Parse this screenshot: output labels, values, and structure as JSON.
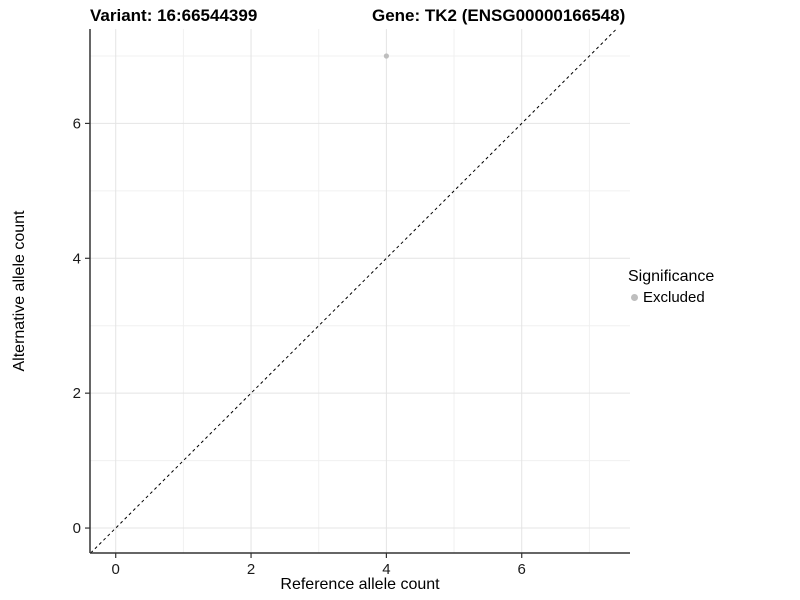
{
  "chart_data": {
    "type": "scatter",
    "title_left": "Variant: 16:66544399",
    "title_right": "Gene: TK2 (ENSG00000166548)",
    "xlabel": "Reference allele count",
    "ylabel": "Alternative allele count",
    "xlim": [
      -0.38,
      7.6
    ],
    "ylim": [
      -0.37,
      7.4
    ],
    "x_major_ticks": [
      0,
      2,
      4,
      6
    ],
    "x_minor_ticks": [
      1,
      3,
      5,
      7
    ],
    "y_major_ticks": [
      0,
      2,
      4,
      6
    ],
    "y_minor_ticks": [
      1,
      3,
      5,
      7
    ],
    "grid": true,
    "points": [
      {
        "x": 4,
        "y": 7,
        "significance": "Excluded"
      }
    ],
    "identity_line": {
      "equation": "y = x",
      "style": "dashed"
    },
    "legend": {
      "title": "Significance",
      "position": "right",
      "items": [
        {
          "label": "Excluded",
          "color": "#bebebe"
        }
      ]
    },
    "colors": {
      "background": "#ffffff",
      "point": "#bebebe",
      "grid_major": "#e4e4e4",
      "grid_minor": "#f0f0f0",
      "axis_line": "#333333",
      "tick_mark": "#333333",
      "tick_text": "#1a1a1a",
      "dashed_line": "#000000",
      "title_text": "#000000"
    }
  }
}
